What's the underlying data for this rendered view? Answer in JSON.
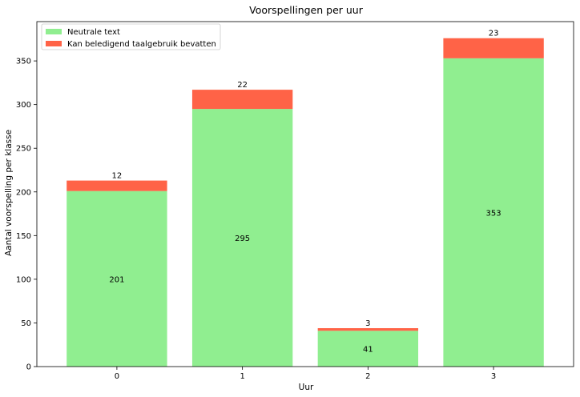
{
  "chart_data": {
    "type": "bar",
    "stacked": true,
    "title": "Voorspellingen per uur",
    "xlabel": "Uur",
    "ylabel": "Aantal voorspelling per klasse",
    "categories": [
      "0",
      "1",
      "2",
      "3"
    ],
    "ylim": [
      0,
      395
    ],
    "yticks": [
      0,
      50,
      100,
      150,
      200,
      250,
      300,
      350
    ],
    "legend_position": "top-left",
    "grid": false,
    "series": [
      {
        "name": "Neutrale text",
        "color": "#90ee90",
        "values": [
          201,
          295,
          41,
          353
        ]
      },
      {
        "name": "Kan beledigend taalgebruik bevatten",
        "color": "#ff6347",
        "values": [
          12,
          22,
          3,
          23
        ]
      }
    ]
  }
}
